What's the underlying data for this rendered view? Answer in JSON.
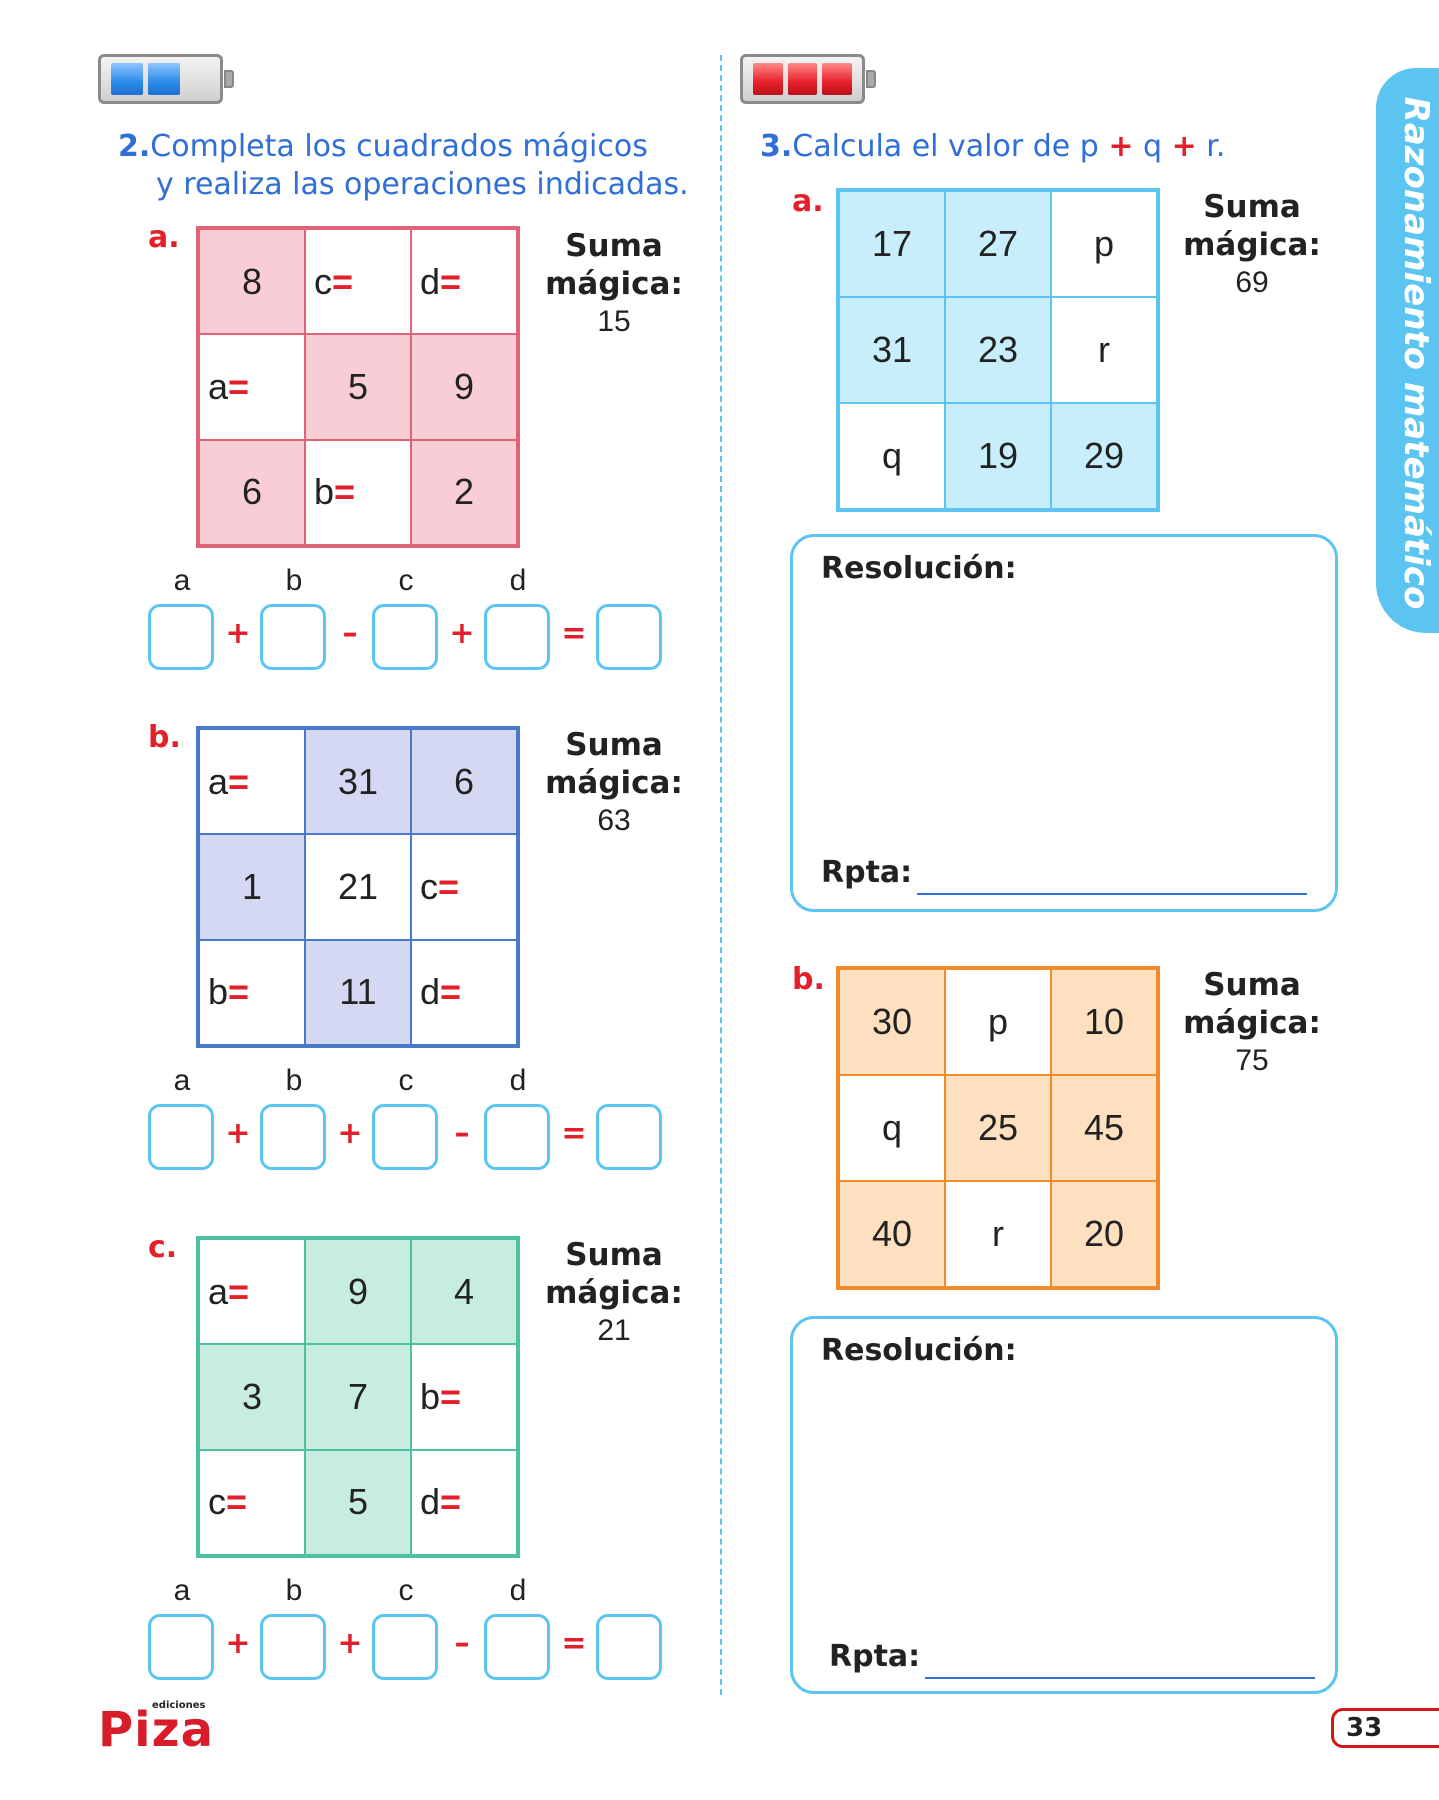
{
  "sidebar_tab": "Razonamiento matemático",
  "page_number": "33",
  "publisher": {
    "small": "ediciones",
    "name": "Piza"
  },
  "q2": {
    "number": "2.",
    "text_line1": "Completa los cuadrados mágicos",
    "text_line2": "y realiza las operaciones indicadas.",
    "parts": [
      {
        "letter": "a.",
        "magic_title": "Suma mágica:",
        "magic_value": "15",
        "cells": [
          {
            "text": "8"
          },
          {
            "text": "c",
            "eq": "="
          },
          {
            "text": "d",
            "eq": "="
          },
          {
            "text": "a",
            "eq": "="
          },
          {
            "text": "5"
          },
          {
            "text": "9"
          },
          {
            "text": "6"
          },
          {
            "text": "b",
            "eq": "="
          },
          {
            "text": "2"
          }
        ],
        "op_labels": [
          "a",
          "b",
          "c",
          "d"
        ],
        "operators": [
          "+",
          "–",
          "+",
          "="
        ]
      },
      {
        "letter": "b.",
        "magic_title": "Suma mágica:",
        "magic_value": "63",
        "cells": [
          {
            "text": "a",
            "eq": "="
          },
          {
            "text": "31"
          },
          {
            "text": "6"
          },
          {
            "text": "1"
          },
          {
            "text": "21"
          },
          {
            "text": "c",
            "eq": "="
          },
          {
            "text": "b",
            "eq": "="
          },
          {
            "text": "11"
          },
          {
            "text": "d",
            "eq": "="
          }
        ],
        "op_labels": [
          "a",
          "b",
          "c",
          "d"
        ],
        "operators": [
          "+",
          "+",
          "–",
          "="
        ]
      },
      {
        "letter": "c.",
        "magic_title": "Suma mágica:",
        "magic_value": "21",
        "cells": [
          {
            "text": "a",
            "eq": "="
          },
          {
            "text": "9"
          },
          {
            "text": "4"
          },
          {
            "text": "3"
          },
          {
            "text": "7"
          },
          {
            "text": "b",
            "eq": "="
          },
          {
            "text": "c",
            "eq": "="
          },
          {
            "text": "5"
          },
          {
            "text": "d",
            "eq": "="
          }
        ],
        "op_labels": [
          "a",
          "b",
          "c",
          "d"
        ],
        "operators": [
          "+",
          "+",
          "–",
          "="
        ]
      }
    ]
  },
  "q3": {
    "number": "3.",
    "text_before": "Calcula el valor de p ",
    "plus1": "+",
    "text_mid": " q ",
    "plus2": "+",
    "text_after": " r.",
    "parts": [
      {
        "letter": "a.",
        "magic_title": "Suma mágica:",
        "magic_value": "69",
        "cells": [
          {
            "text": "17"
          },
          {
            "text": "27"
          },
          {
            "text": "p"
          },
          {
            "text": "31"
          },
          {
            "text": "23"
          },
          {
            "text": "r"
          },
          {
            "text": "q"
          },
          {
            "text": "19"
          },
          {
            "text": "29"
          }
        ],
        "resolution_label": "Resolución:",
        "answer_label": "Rpta:"
      },
      {
        "letter": "b.",
        "magic_title": "Suma mágica:",
        "magic_value": "75",
        "cells": [
          {
            "text": "30"
          },
          {
            "text": "p"
          },
          {
            "text": "10"
          },
          {
            "text": "q"
          },
          {
            "text": "25"
          },
          {
            "text": "45"
          },
          {
            "text": "40"
          },
          {
            "text": "r"
          },
          {
            "text": "20"
          }
        ],
        "resolution_label": "Resolución:",
        "answer_label": "Rpta:"
      }
    ]
  }
}
